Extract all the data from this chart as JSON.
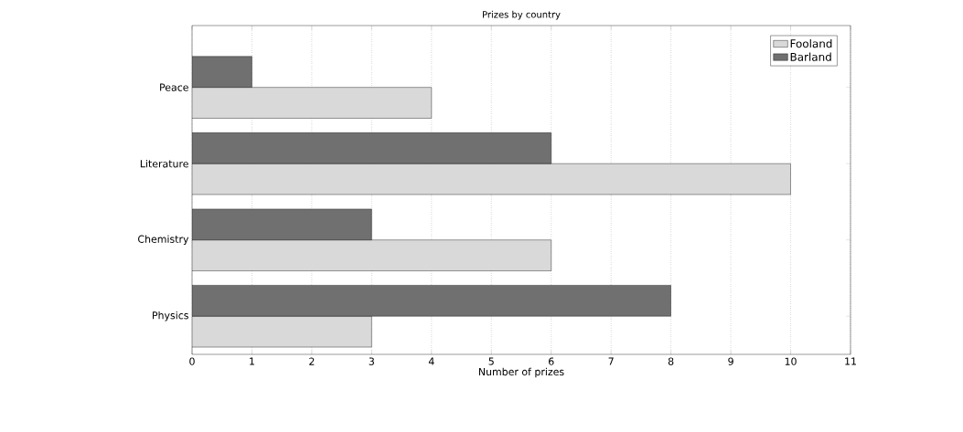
{
  "chart_data": {
    "type": "bar",
    "orientation": "horizontal",
    "title": "Prizes by country",
    "xlabel": "Number of prizes",
    "categories": [
      "Peace",
      "Literature",
      "Chemistry",
      "Physics"
    ],
    "series": [
      {
        "name": "Fooland",
        "color": "#d9d9d9",
        "values": [
          4,
          10,
          6,
          3
        ]
      },
      {
        "name": "Barland",
        "color": "#707070",
        "values": [
          1,
          6,
          3,
          8
        ]
      }
    ],
    "xlim": [
      0,
      11
    ],
    "xticks": [
      0,
      1,
      2,
      3,
      4,
      5,
      6,
      7,
      8,
      9,
      10,
      11
    ],
    "grid": "x",
    "line_style": "dotted",
    "legend": "top right"
  }
}
